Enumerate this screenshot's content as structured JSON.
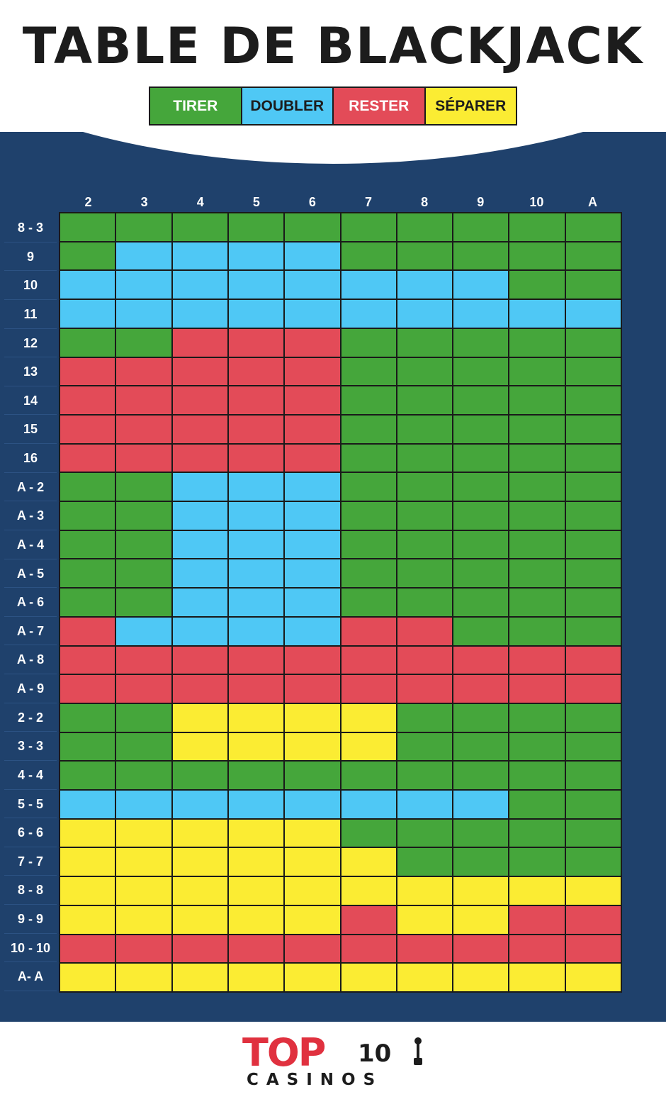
{
  "title": "TABLE DE BLACKJACK",
  "legend": [
    {
      "label": "TIRER",
      "color": "#45a63b",
      "text_color": "#ffffff"
    },
    {
      "label": "DOUBLER",
      "color": "#4fc8f5",
      "text_color": "#1c1c1c"
    },
    {
      "label": "RESTER",
      "color": "#e34b58",
      "text_color": "#ffffff"
    },
    {
      "label": "SÉPARER",
      "color": "#fbec33",
      "text_color": "#1c1c1c"
    }
  ],
  "chart_data": {
    "type": "table",
    "columns": [
      "2",
      "3",
      "4",
      "5",
      "6",
      "7",
      "8",
      "9",
      "10",
      "A"
    ],
    "codes": {
      "H": "TIRER",
      "D": "DOUBLER",
      "S": "RESTER",
      "P": "SÉPARER"
    },
    "colors": {
      "H": "#45a63b",
      "D": "#4fc8f5",
      "S": "#e34b58",
      "P": "#fbec33"
    },
    "rows": [
      {
        "label": "8 - 3",
        "cells": [
          "H",
          "H",
          "H",
          "H",
          "H",
          "H",
          "H",
          "H",
          "H",
          "H"
        ]
      },
      {
        "label": "9",
        "cells": [
          "H",
          "D",
          "D",
          "D",
          "D",
          "H",
          "H",
          "H",
          "H",
          "H"
        ]
      },
      {
        "label": "10",
        "cells": [
          "D",
          "D",
          "D",
          "D",
          "D",
          "D",
          "D",
          "D",
          "H",
          "H"
        ]
      },
      {
        "label": "11",
        "cells": [
          "D",
          "D",
          "D",
          "D",
          "D",
          "D",
          "D",
          "D",
          "D",
          "D"
        ]
      },
      {
        "label": "12",
        "cells": [
          "H",
          "H",
          "S",
          "S",
          "S",
          "H",
          "H",
          "H",
          "H",
          "H"
        ]
      },
      {
        "label": "13",
        "cells": [
          "S",
          "S",
          "S",
          "S",
          "S",
          "H",
          "H",
          "H",
          "H",
          "H"
        ]
      },
      {
        "label": "14",
        "cells": [
          "S",
          "S",
          "S",
          "S",
          "S",
          "H",
          "H",
          "H",
          "H",
          "H"
        ]
      },
      {
        "label": "15",
        "cells": [
          "S",
          "S",
          "S",
          "S",
          "S",
          "H",
          "H",
          "H",
          "H",
          "H"
        ]
      },
      {
        "label": "16",
        "cells": [
          "S",
          "S",
          "S",
          "S",
          "S",
          "H",
          "H",
          "H",
          "H",
          "H"
        ]
      },
      {
        "label": "A - 2",
        "cells": [
          "H",
          "H",
          "D",
          "D",
          "D",
          "H",
          "H",
          "H",
          "H",
          "H"
        ]
      },
      {
        "label": "A - 3",
        "cells": [
          "H",
          "H",
          "D",
          "D",
          "D",
          "H",
          "H",
          "H",
          "H",
          "H"
        ]
      },
      {
        "label": "A - 4",
        "cells": [
          "H",
          "H",
          "D",
          "D",
          "D",
          "H",
          "H",
          "H",
          "H",
          "H"
        ]
      },
      {
        "label": "A - 5",
        "cells": [
          "H",
          "H",
          "D",
          "D",
          "D",
          "H",
          "H",
          "H",
          "H",
          "H"
        ]
      },
      {
        "label": "A - 6",
        "cells": [
          "H",
          "H",
          "D",
          "D",
          "D",
          "H",
          "H",
          "H",
          "H",
          "H"
        ]
      },
      {
        "label": "A - 7",
        "cells": [
          "S",
          "D",
          "D",
          "D",
          "D",
          "S",
          "S",
          "H",
          "H",
          "H"
        ]
      },
      {
        "label": "A - 8",
        "cells": [
          "S",
          "S",
          "S",
          "S",
          "S",
          "S",
          "S",
          "S",
          "S",
          "S"
        ]
      },
      {
        "label": "A - 9",
        "cells": [
          "S",
          "S",
          "S",
          "S",
          "S",
          "S",
          "S",
          "S",
          "S",
          "S"
        ]
      },
      {
        "label": "2 - 2",
        "cells": [
          "H",
          "H",
          "P",
          "P",
          "P",
          "P",
          "H",
          "H",
          "H",
          "H"
        ]
      },
      {
        "label": "3 - 3",
        "cells": [
          "H",
          "H",
          "P",
          "P",
          "P",
          "P",
          "H",
          "H",
          "H",
          "H"
        ]
      },
      {
        "label": "4 - 4",
        "cells": [
          "H",
          "H",
          "H",
          "H",
          "H",
          "H",
          "H",
          "H",
          "H",
          "H"
        ]
      },
      {
        "label": "5 - 5",
        "cells": [
          "D",
          "D",
          "D",
          "D",
          "D",
          "D",
          "D",
          "D",
          "H",
          "H"
        ]
      },
      {
        "label": "6 - 6",
        "cells": [
          "P",
          "P",
          "P",
          "P",
          "P",
          "H",
          "H",
          "H",
          "H",
          "H"
        ]
      },
      {
        "label": "7 - 7",
        "cells": [
          "P",
          "P",
          "P",
          "P",
          "P",
          "P",
          "H",
          "H",
          "H",
          "H"
        ]
      },
      {
        "label": "8 - 8",
        "cells": [
          "P",
          "P",
          "P",
          "P",
          "P",
          "P",
          "P",
          "P",
          "P",
          "P"
        ]
      },
      {
        "label": "9 - 9",
        "cells": [
          "P",
          "P",
          "P",
          "P",
          "P",
          "S",
          "P",
          "P",
          "S",
          "S"
        ]
      },
      {
        "label": "10 - 10",
        "cells": [
          "S",
          "S",
          "S",
          "S",
          "S",
          "S",
          "S",
          "S",
          "S",
          "S"
        ]
      },
      {
        "label": "A-  A",
        "cells": [
          "P",
          "P",
          "P",
          "P",
          "P",
          "P",
          "P",
          "P",
          "P",
          "P"
        ]
      }
    ]
  },
  "logo": {
    "top_text": "TOP",
    "number": "10",
    "bottom_text": "CASINOS",
    "accent_color": "#e0313f"
  }
}
